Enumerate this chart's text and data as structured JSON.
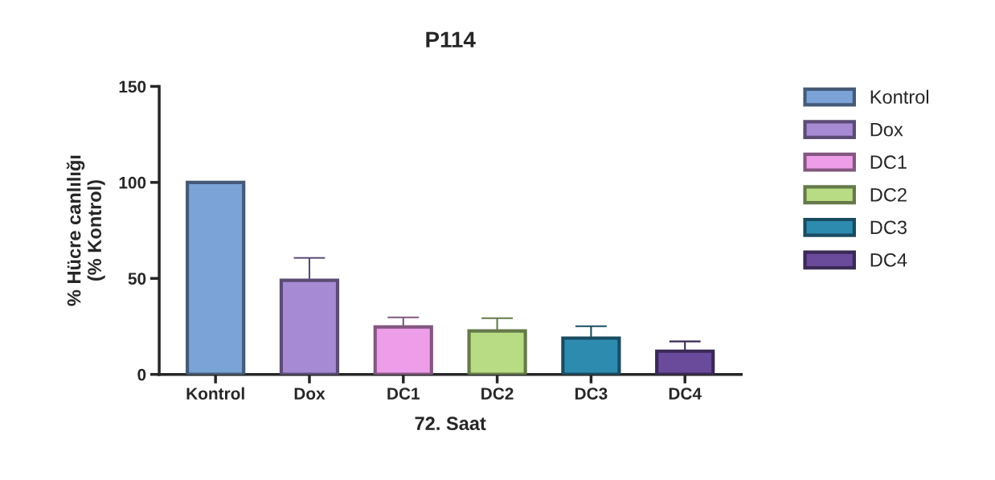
{
  "chart_data": {
    "type": "bar",
    "title": "P114",
    "xlabel": "72. Saat",
    "ylabel": "% Hücre canlılığı\n(% Kontrol)",
    "categories": [
      "Kontrol",
      "Dox",
      "DC1",
      "DC2",
      "DC3",
      "DC4"
    ],
    "series": [
      {
        "name": "Kontrol",
        "color": "#7ba3d8",
        "values": [
          100,
          null,
          null,
          null,
          null,
          null
        ]
      },
      {
        "name": "Dox",
        "color": "#a68bd4",
        "values": [
          null,
          49,
          null,
          null,
          null,
          null
        ],
        "errors": [
          null,
          [
            49,
            60.7
          ],
          null,
          null,
          null,
          null
        ]
      },
      {
        "name": "DC1",
        "color": "#ee9ee8",
        "values": [
          null,
          null,
          24.7,
          null,
          null,
          null
        ],
        "errors": [
          null,
          null,
          [
            24.7,
            29.7
          ],
          null,
          null,
          null
        ]
      },
      {
        "name": "DC2",
        "color": "#b8dc84",
        "values": [
          null,
          null,
          null,
          22.6,
          null,
          null
        ],
        "errors": [
          null,
          null,
          null,
          [
            22.6,
            29.3
          ],
          null,
          null
        ]
      },
      {
        "name": "DC3",
        "color": "#2e8bb0",
        "values": [
          null,
          null,
          null,
          null,
          18.9,
          null
        ],
        "errors": [
          null,
          null,
          null,
          null,
          [
            18.9,
            25.1
          ],
          null
        ]
      },
      {
        "name": "DC4",
        "color": "#6a4a9a",
        "values": [
          null,
          null,
          null,
          null,
          null,
          12.1
        ],
        "errors": [
          null,
          null,
          null,
          null,
          null,
          [
            12.1,
            17.2
          ]
        ]
      }
    ],
    "ylim": [
      0,
      150
    ],
    "yticks": [
      0,
      50,
      100,
      150
    ],
    "grid": false,
    "legend": "right"
  }
}
